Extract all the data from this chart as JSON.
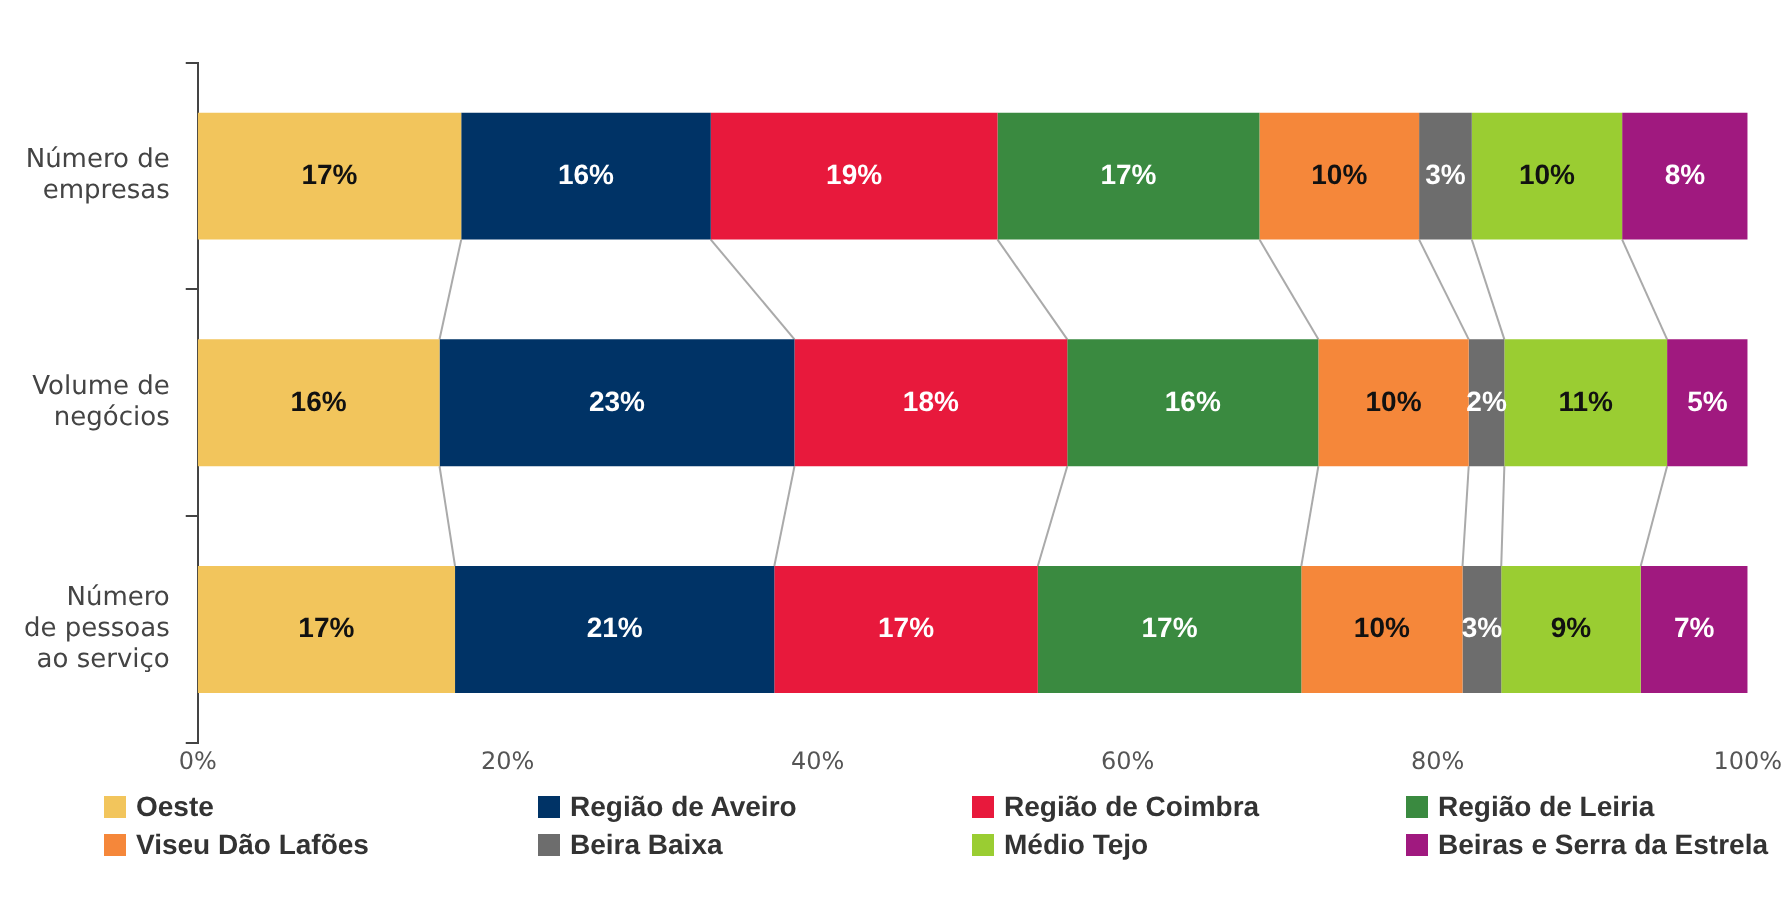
{
  "chart_data": {
    "type": "bar",
    "orientation": "horizontal",
    "stacked": true,
    "categories": [
      "Número de\nempresas",
      "Volume de\nnegócios",
      "Número\nde pessoas\nao serviço"
    ],
    "series": [
      {
        "name": "Oeste",
        "color": "#f2c55c",
        "values": [
          17.0,
          15.6,
          16.6
        ],
        "value_labels": [
          "17%",
          "16%",
          "17%"
        ]
      },
      {
        "name": "Região de Aveiro",
        "color": "#003366",
        "values": [
          16.1,
          22.9,
          20.6
        ],
        "value_labels": [
          "16%",
          "23%",
          "21%"
        ]
      },
      {
        "name": "Região de Coimbra",
        "color": "#e8193c",
        "values": [
          18.5,
          17.6,
          17.0
        ],
        "value_labels": [
          "19%",
          "18%",
          "17%"
        ]
      },
      {
        "name": "Região de Leiria",
        "color": "#3a8a40",
        "values": [
          16.9,
          16.2,
          17.0
        ],
        "value_labels": [
          "17%",
          "16%",
          "17%"
        ]
      },
      {
        "name": "Viseu Dão Lafões",
        "color": "#f5873a",
        "values": [
          10.3,
          9.7,
          10.4
        ],
        "value_labels": [
          "10%",
          "10%",
          "10%"
        ]
      },
      {
        "name": "Beira Baixa",
        "color": "#6d6d6d",
        "values": [
          3.4,
          2.3,
          2.5
        ],
        "value_labels": [
          "3%",
          "2%",
          "3%"
        ]
      },
      {
        "name": "Médio Tejo",
        "color": "#9acd32",
        "values": [
          9.7,
          10.5,
          9.0
        ],
        "value_labels": [
          "10%",
          "11%",
          "9%"
        ]
      },
      {
        "name": "Beiras e Serra da Estrela",
        "color": "#a0197f",
        "values": [
          8.1,
          5.2,
          6.9
        ],
        "value_labels": [
          "8%",
          "5%",
          "7%"
        ]
      }
    ],
    "xlim": [
      0,
      100
    ],
    "xticks": [
      {
        "value": 0,
        "label": "0%"
      },
      {
        "value": 20,
        "label": "20%"
      },
      {
        "value": 40,
        "label": "40%"
      },
      {
        "value": 60,
        "label": "60%"
      },
      {
        "value": 80,
        "label": "80%"
      },
      {
        "value": 100,
        "label": "100%"
      }
    ],
    "grid": false,
    "legend": "bottom"
  }
}
